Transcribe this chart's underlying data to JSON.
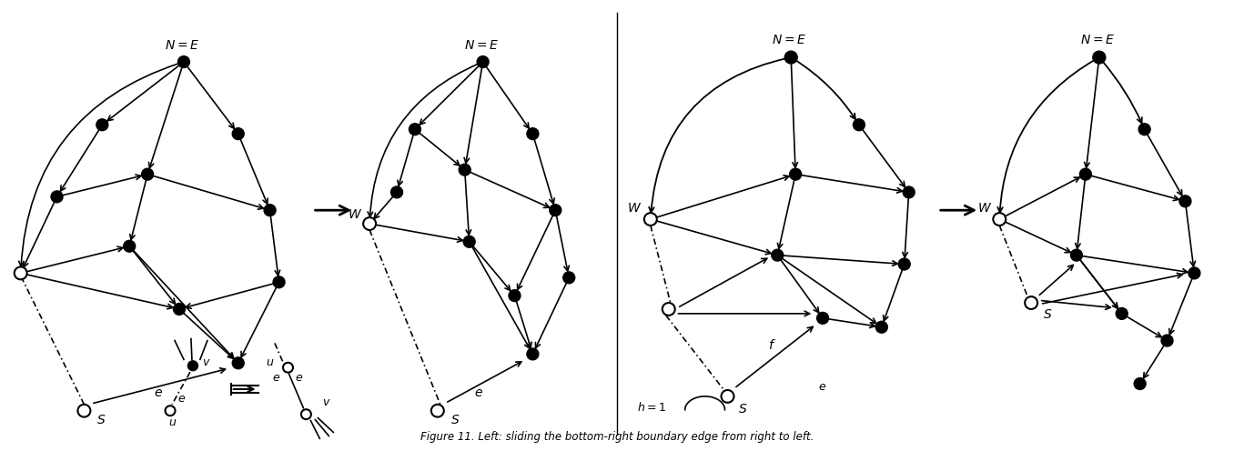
{
  "figsize": [
    13.56,
    4.96
  ],
  "bg_color": "white",
  "title": "Figure 11. Left: sliding the bottom-right boundary edge from right to left."
}
